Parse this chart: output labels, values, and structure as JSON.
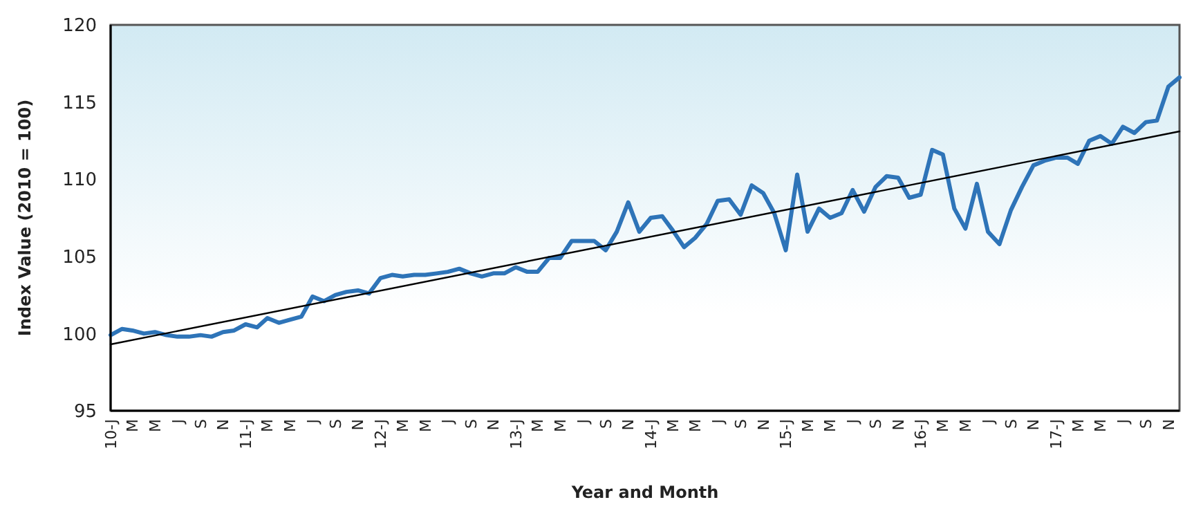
{
  "chart_data": {
    "type": "line",
    "xlabel": "Year and Month",
    "ylabel": "Index Value (2010 = 100)",
    "ylim": [
      95,
      120
    ],
    "yticks": [
      95,
      100,
      105,
      110,
      115,
      120
    ],
    "grid": false,
    "marker": "none",
    "x": [
      "2010-01",
      "2010-02",
      "2010-03",
      "2010-04",
      "2010-05",
      "2010-06",
      "2010-07",
      "2010-08",
      "2010-09",
      "2010-10",
      "2010-11",
      "2010-12",
      "2011-01",
      "2011-02",
      "2011-03",
      "2011-04",
      "2011-05",
      "2011-06",
      "2011-07",
      "2011-08",
      "2011-09",
      "2011-10",
      "2011-11",
      "2011-12",
      "2012-01",
      "2012-02",
      "2012-03",
      "2012-04",
      "2012-05",
      "2012-06",
      "2012-07",
      "2012-08",
      "2012-09",
      "2012-10",
      "2012-11",
      "2012-12",
      "2013-01",
      "2013-02",
      "2013-03",
      "2013-04",
      "2013-05",
      "2013-06",
      "2013-07",
      "2013-08",
      "2013-09",
      "2013-10",
      "2013-11",
      "2013-12",
      "2014-01",
      "2014-02",
      "2014-03",
      "2014-04",
      "2014-05",
      "2014-06",
      "2014-07",
      "2014-08",
      "2014-09",
      "2014-10",
      "2014-11",
      "2014-12",
      "2015-01",
      "2015-02",
      "2015-03",
      "2015-04",
      "2015-05",
      "2015-06",
      "2015-07",
      "2015-08",
      "2015-09",
      "2015-10",
      "2015-11",
      "2015-12",
      "2016-01",
      "2016-02",
      "2016-03",
      "2016-04",
      "2016-05",
      "2016-06",
      "2016-07",
      "2016-08",
      "2016-09",
      "2016-10",
      "2016-11",
      "2016-12",
      "2017-01",
      "2017-02",
      "2017-03",
      "2017-04",
      "2017-05",
      "2017-06",
      "2017-07",
      "2017-08",
      "2017-09",
      "2017-10",
      "2017-11",
      "2017-12"
    ],
    "xlim": [
      "2010-01",
      "2017-12"
    ],
    "xticks": [
      {
        "value": "2010-01",
        "label": "10-J"
      },
      {
        "value": "2010-03",
        "label": "M"
      },
      {
        "value": "2010-05",
        "label": "M"
      },
      {
        "value": "2010-07",
        "label": "J"
      },
      {
        "value": "2010-09",
        "label": "S"
      },
      {
        "value": "2010-11",
        "label": "N"
      },
      {
        "value": "2011-01",
        "label": "11-J"
      },
      {
        "value": "2011-03",
        "label": "M"
      },
      {
        "value": "2011-05",
        "label": "M"
      },
      {
        "value": "2011-07",
        "label": "J"
      },
      {
        "value": "2011-09",
        "label": "S"
      },
      {
        "value": "2011-11",
        "label": "N"
      },
      {
        "value": "2012-01",
        "label": "12-J"
      },
      {
        "value": "2012-03",
        "label": "M"
      },
      {
        "value": "2012-05",
        "label": "M"
      },
      {
        "value": "2012-07",
        "label": "J"
      },
      {
        "value": "2012-09",
        "label": "S"
      },
      {
        "value": "2012-11",
        "label": "N"
      },
      {
        "value": "2013-01",
        "label": "13-J"
      },
      {
        "value": "2013-03",
        "label": "M"
      },
      {
        "value": "2013-05",
        "label": "M"
      },
      {
        "value": "2013-07",
        "label": "J"
      },
      {
        "value": "2013-09",
        "label": "S"
      },
      {
        "value": "2013-11",
        "label": "N"
      },
      {
        "value": "2014-01",
        "label": "14-J"
      },
      {
        "value": "2014-03",
        "label": "M"
      },
      {
        "value": "2014-05",
        "label": "M"
      },
      {
        "value": "2014-07",
        "label": "J"
      },
      {
        "value": "2014-09",
        "label": "S"
      },
      {
        "value": "2014-11",
        "label": "N"
      },
      {
        "value": "2015-01",
        "label": "15-J"
      },
      {
        "value": "2015-03",
        "label": "M"
      },
      {
        "value": "2015-05",
        "label": "M"
      },
      {
        "value": "2015-07",
        "label": "J"
      },
      {
        "value": "2015-09",
        "label": "S"
      },
      {
        "value": "2015-11",
        "label": "N"
      },
      {
        "value": "2016-01",
        "label": "16-J"
      },
      {
        "value": "2016-03",
        "label": "M"
      },
      {
        "value": "2016-05",
        "label": "M"
      },
      {
        "value": "2016-07",
        "label": "J"
      },
      {
        "value": "2016-09",
        "label": "S"
      },
      {
        "value": "2016-11",
        "label": "N"
      },
      {
        "value": "2017-01",
        "label": "17-J"
      },
      {
        "value": "2017-03",
        "label": "M"
      },
      {
        "value": "2017-05",
        "label": "M"
      },
      {
        "value": "2017-07",
        "label": "J"
      },
      {
        "value": "2017-09",
        "label": "S"
      },
      {
        "value": "2017-11",
        "label": "N"
      }
    ],
    "series": [
      {
        "color": "#2e74b8",
        "values": [
          99.9,
          100.3,
          100.2,
          100.0,
          100.1,
          99.9,
          99.8,
          99.8,
          99.9,
          99.8,
          100.1,
          100.2,
          100.6,
          100.4,
          101.0,
          100.7,
          100.9,
          101.1,
          102.4,
          102.1,
          102.5,
          102.7,
          102.8,
          102.6,
          103.6,
          103.8,
          103.7,
          103.8,
          103.8,
          103.9,
          104.0,
          104.2,
          103.9,
          103.7,
          103.9,
          103.9,
          104.3,
          104.0,
          104.0,
          104.9,
          104.9,
          106.0,
          106.0,
          106.0,
          105.4,
          106.6,
          108.5,
          106.6,
          107.5,
          107.6,
          106.7,
          105.6,
          106.2,
          107.1,
          108.6,
          108.7,
          107.7,
          109.6,
          109.1,
          107.8,
          105.4,
          110.3,
          106.6,
          108.1,
          107.5,
          107.8,
          109.3,
          107.9,
          109.5,
          110.2,
          110.1,
          108.8,
          109.0,
          111.9,
          111.6,
          108.1,
          106.8,
          109.7,
          106.6,
          105.8,
          108.0,
          109.5,
          110.9,
          111.2,
          111.4,
          111.4,
          111.0,
          112.5,
          112.8,
          112.3,
          113.4,
          113.0,
          113.7,
          113.8,
          116.0,
          116.6
        ]
      },
      {
        "type": "line",
        "color": "#000000",
        "x": [
          "2010-01",
          "2017-12"
        ],
        "values": [
          99.3,
          113.1
        ]
      }
    ]
  }
}
